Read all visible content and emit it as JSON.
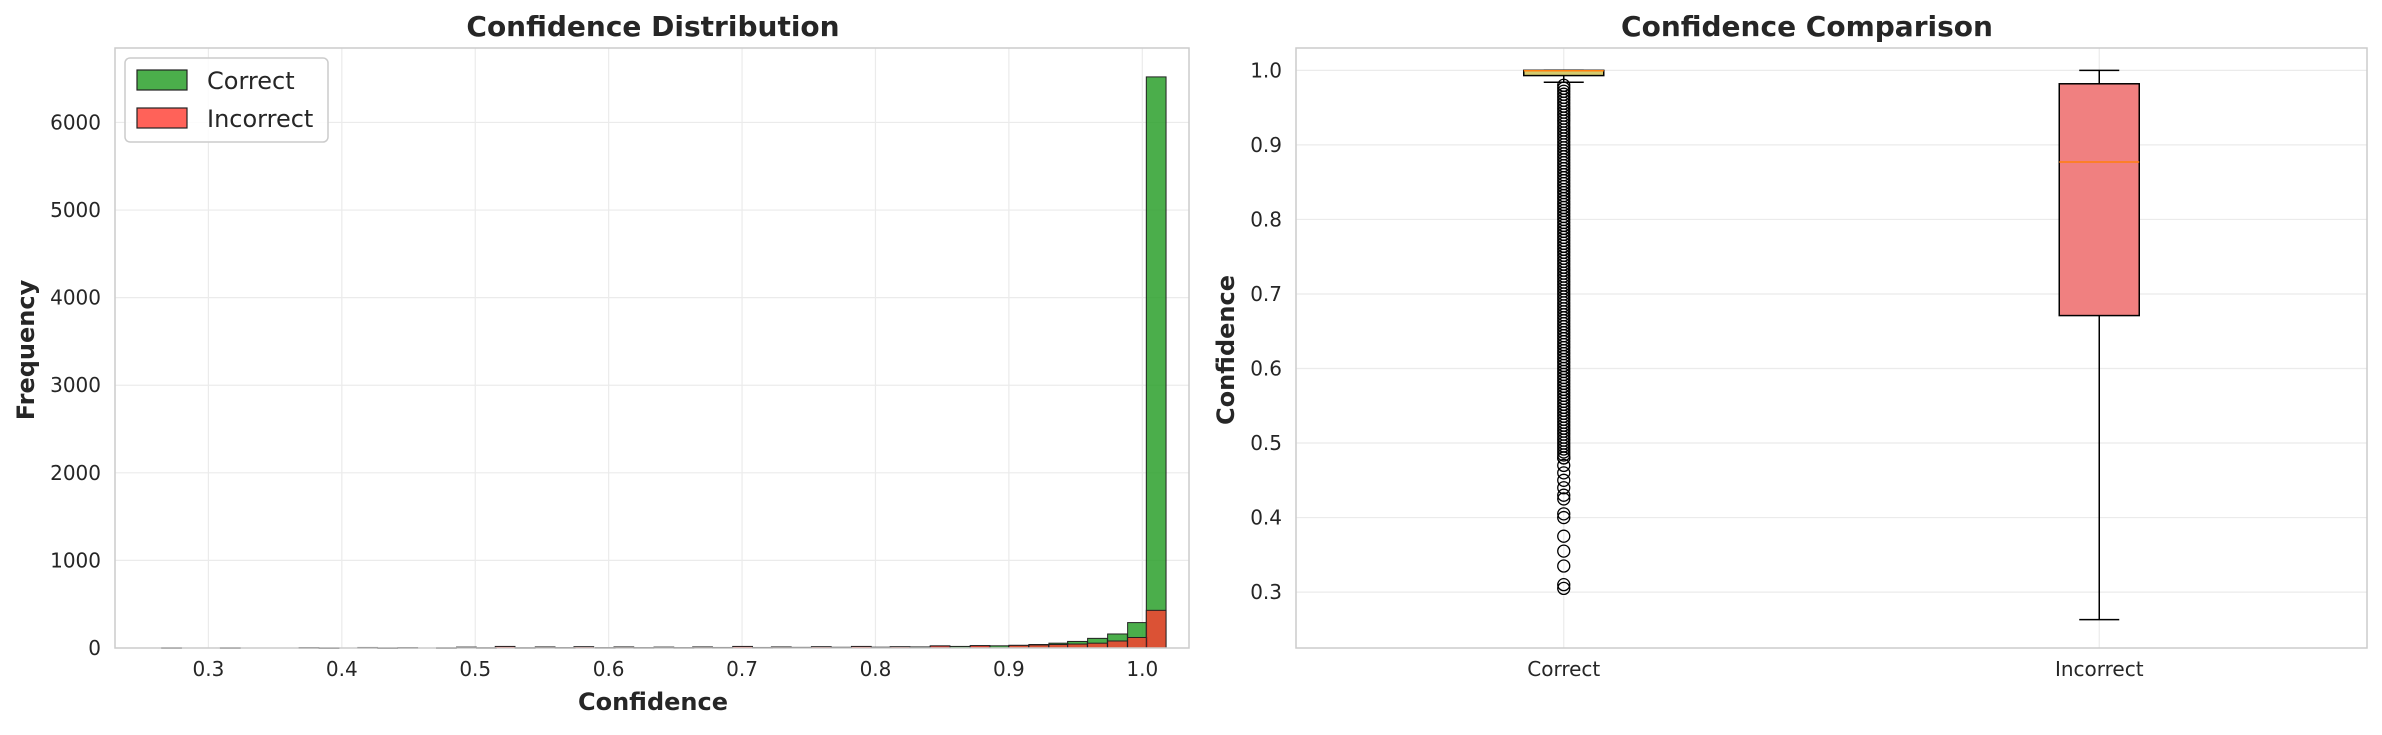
{
  "chart_data": [
    {
      "type": "bar",
      "title": "Confidence Distribution",
      "xlabel": "Confidence",
      "ylabel": "Frequency",
      "xlim": [
        0.23,
        1.035
      ],
      "ylim": [
        0,
        6850
      ],
      "xticks": [
        0.3,
        0.4,
        0.5,
        0.6,
        0.7,
        0.8,
        0.9,
        1.0
      ],
      "xtick_labels": [
        "0.3",
        "0.4",
        "0.5",
        "0.6",
        "0.7",
        "0.8",
        "0.9",
        "1.0"
      ],
      "yticks": [
        0,
        1000,
        2000,
        3000,
        4000,
        5000,
        6000
      ],
      "ytick_labels": [
        "0",
        "1000",
        "2000",
        "3000",
        "4000",
        "5000",
        "6000"
      ],
      "grid": true,
      "legend_position": "top-left",
      "bin_width": 0.0148,
      "series": [
        {
          "name": "Correct",
          "color": "#2ca02c",
          "bins": [
            [
              0.383,
              2
            ],
            [
              0.427,
              2
            ],
            [
              0.471,
              3
            ],
            [
              0.501,
              4
            ],
            [
              0.53,
              4
            ],
            [
              0.56,
              5
            ],
            [
              0.59,
              5
            ],
            [
              0.619,
              5
            ],
            [
              0.649,
              5
            ],
            [
              0.678,
              6
            ],
            [
              0.708,
              6
            ],
            [
              0.737,
              7
            ],
            [
              0.767,
              8
            ],
            [
              0.797,
              9
            ],
            [
              0.826,
              12
            ],
            [
              0.841,
              15
            ],
            [
              0.856,
              18
            ],
            [
              0.871,
              20
            ],
            [
              0.885,
              25
            ],
            [
              0.9,
              30
            ],
            [
              0.915,
              40
            ],
            [
              0.93,
              55
            ],
            [
              0.944,
              75
            ],
            [
              0.959,
              110
            ],
            [
              0.974,
              160
            ],
            [
              0.989,
              290
            ],
            [
              1.003,
              6520
            ]
          ]
        },
        {
          "name": "Incorrect",
          "color": "#ff3b30",
          "bins": [
            [
              0.265,
              3
            ],
            [
              0.309,
              3
            ],
            [
              0.368,
              5
            ],
            [
              0.412,
              6
            ],
            [
              0.442,
              5
            ],
            [
              0.486,
              10
            ],
            [
              0.515,
              18
            ],
            [
              0.545,
              12
            ],
            [
              0.574,
              15
            ],
            [
              0.604,
              12
            ],
            [
              0.634,
              10
            ],
            [
              0.663,
              12
            ],
            [
              0.693,
              18
            ],
            [
              0.722,
              12
            ],
            [
              0.752,
              15
            ],
            [
              0.782,
              18
            ],
            [
              0.811,
              15
            ],
            [
              0.841,
              25
            ],
            [
              0.871,
              28
            ],
            [
              0.9,
              30
            ],
            [
              0.915,
              35
            ],
            [
              0.93,
              40
            ],
            [
              0.944,
              45
            ],
            [
              0.959,
              55
            ],
            [
              0.974,
              80
            ],
            [
              0.989,
              120
            ],
            [
              1.003,
              430
            ]
          ]
        }
      ]
    },
    {
      "type": "box",
      "title": "Confidence Comparison",
      "ylabel": "Confidence",
      "categories": [
        "Correct",
        "Incorrect"
      ],
      "ylim": [
        0.225,
        1.03
      ],
      "yticks": [
        0.3,
        0.4,
        0.5,
        0.6,
        0.7,
        0.8,
        0.9,
        1.0
      ],
      "ytick_labels": [
        "0.3",
        "0.4",
        "0.5",
        "0.6",
        "0.7",
        "0.8",
        "0.9",
        "1.0"
      ],
      "grid": true,
      "series": [
        {
          "name": "Correct",
          "color": "#d4cb6e",
          "whisker_low": 0.984,
          "q1": 0.993,
          "median": 0.9995,
          "q3": 1.0,
          "whisker_high": 1.0,
          "outliers": [
            0.305,
            0.31,
            0.335,
            0.355,
            0.375,
            0.4,
            0.405,
            0.425,
            0.43,
            0.44,
            0.45,
            0.46,
            0.47,
            0.48
          ]
        },
        {
          "name": "Incorrect",
          "color": "#f08080",
          "whisker_low": 0.263,
          "q1": 0.671,
          "median": 0.877,
          "q3": 0.982,
          "whisker_high": 1.0,
          "outliers": []
        }
      ]
    }
  ]
}
